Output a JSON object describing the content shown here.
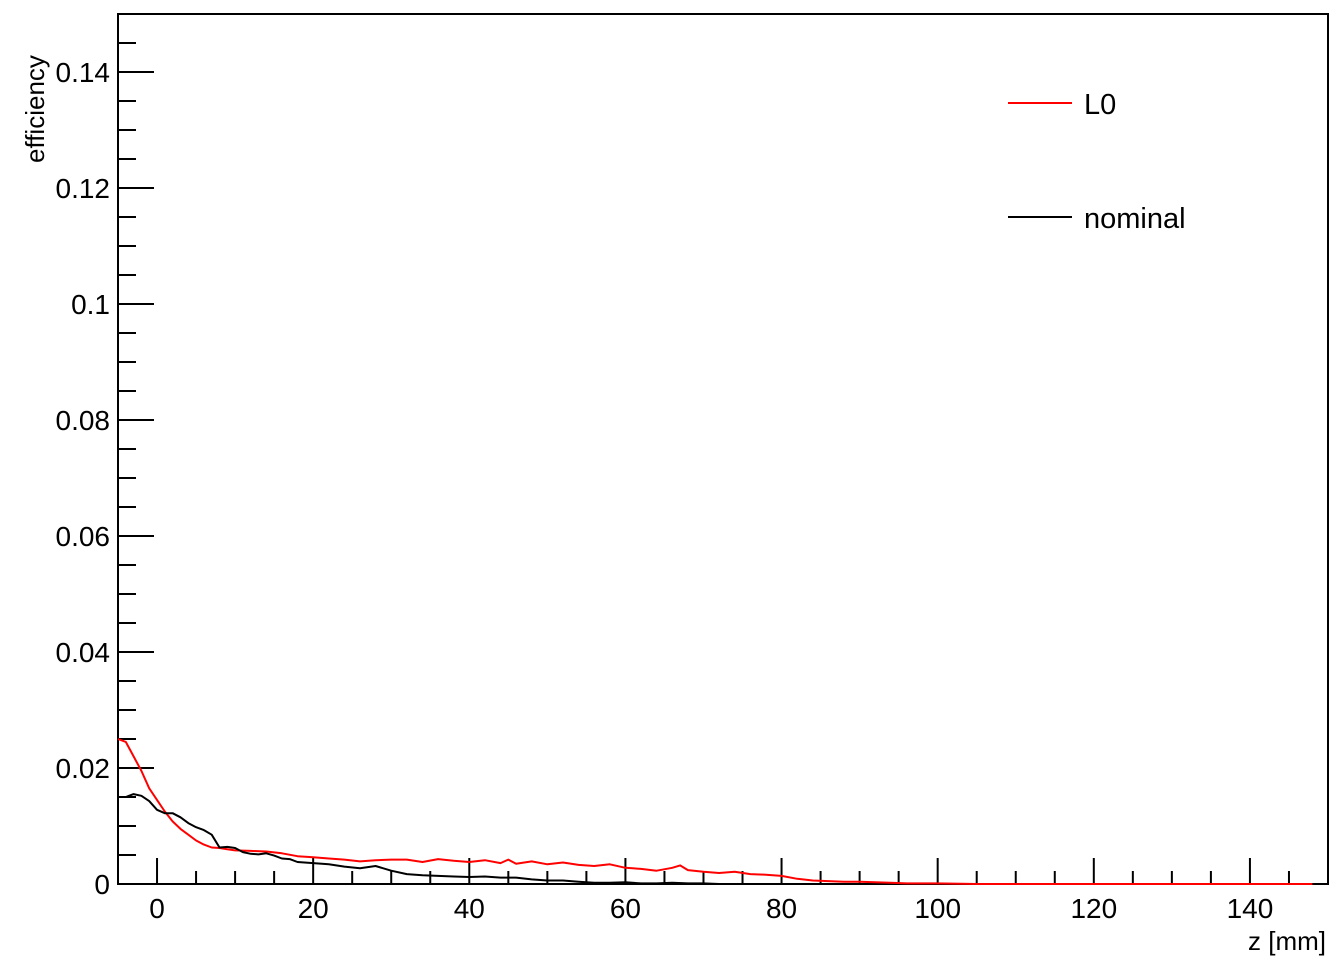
{
  "chart_data": {
    "type": "line",
    "title": "",
    "xlabel": "z [mm]",
    "ylabel": "efficiency",
    "xlim": [
      -5,
      150
    ],
    "ylim": [
      0,
      0.15
    ],
    "x_ticks": [
      0,
      20,
      40,
      60,
      80,
      100,
      120,
      140
    ],
    "x_tick_labels": [
      "0",
      "20",
      "40",
      "60",
      "80",
      "100",
      "120",
      "140"
    ],
    "y_ticks": [
      0,
      0.02,
      0.04,
      0.06,
      0.08,
      0.1,
      0.12,
      0.14
    ],
    "y_tick_labels": [
      "0",
      "0.02",
      "0.04",
      "0.06",
      "0.08",
      "0.1",
      "0.12",
      "0.14"
    ],
    "grid": false,
    "legend_position": "top-right",
    "series": [
      {
        "name": "L0",
        "color": "#ff0000",
        "points": [
          [
            -5,
            0.025
          ],
          [
            -4,
            0.0245
          ],
          [
            -3,
            0.022
          ],
          [
            -2,
            0.0195
          ],
          [
            -1,
            0.0165
          ],
          [
            0,
            0.0145
          ],
          [
            1,
            0.0125
          ],
          [
            2,
            0.0108
          ],
          [
            3,
            0.0095
          ],
          [
            4,
            0.0085
          ],
          [
            5,
            0.0075
          ],
          [
            6,
            0.0068
          ],
          [
            7,
            0.0063
          ],
          [
            8,
            0.0062
          ],
          [
            9,
            0.006
          ],
          [
            10,
            0.0058
          ],
          [
            12,
            0.0057
          ],
          [
            14,
            0.0056
          ],
          [
            16,
            0.0053
          ],
          [
            18,
            0.0048
          ],
          [
            20,
            0.0046
          ],
          [
            22,
            0.0044
          ],
          [
            24,
            0.0042
          ],
          [
            26,
            0.0039
          ],
          [
            28,
            0.0041
          ],
          [
            30,
            0.0042
          ],
          [
            32,
            0.0042
          ],
          [
            34,
            0.0038
          ],
          [
            36,
            0.0043
          ],
          [
            38,
            0.004
          ],
          [
            40,
            0.0038
          ],
          [
            42,
            0.0041
          ],
          [
            44,
            0.0036
          ],
          [
            45,
            0.0042
          ],
          [
            46,
            0.0035
          ],
          [
            48,
            0.0039
          ],
          [
            50,
            0.0034
          ],
          [
            52,
            0.0037
          ],
          [
            54,
            0.0033
          ],
          [
            56,
            0.0031
          ],
          [
            58,
            0.0034
          ],
          [
            60,
            0.0028
          ],
          [
            62,
            0.0026
          ],
          [
            64,
            0.0023
          ],
          [
            66,
            0.0028
          ],
          [
            67,
            0.0032
          ],
          [
            68,
            0.0024
          ],
          [
            70,
            0.0021
          ],
          [
            72,
            0.0019
          ],
          [
            74,
            0.0021
          ],
          [
            76,
            0.0017
          ],
          [
            78,
            0.0016
          ],
          [
            80,
            0.0014
          ],
          [
            82,
            0.0009
          ],
          [
            84,
            0.0006
          ],
          [
            86,
            0.0005
          ],
          [
            88,
            0.0004
          ],
          [
            90,
            0.0004
          ],
          [
            92,
            0.0003
          ],
          [
            94,
            0.0002
          ],
          [
            96,
            0.0001
          ],
          [
            100,
            0.0001
          ],
          [
            105,
            0
          ],
          [
            110,
            0
          ],
          [
            120,
            0
          ],
          [
            130,
            0
          ],
          [
            140,
            0
          ],
          [
            148,
            0
          ]
        ]
      },
      {
        "name": "nominal",
        "color": "#000000",
        "points": [
          [
            -5,
            0.015
          ],
          [
            -4,
            0.015
          ],
          [
            -3,
            0.0155
          ],
          [
            -2,
            0.0152
          ],
          [
            -1,
            0.0143
          ],
          [
            0,
            0.0128
          ],
          [
            1,
            0.0122
          ],
          [
            2,
            0.0122
          ],
          [
            3,
            0.0115
          ],
          [
            4,
            0.0105
          ],
          [
            5,
            0.0098
          ],
          [
            6,
            0.0093
          ],
          [
            7,
            0.0085
          ],
          [
            8,
            0.0063
          ],
          [
            9,
            0.0064
          ],
          [
            10,
            0.0062
          ],
          [
            11,
            0.0055
          ],
          [
            12,
            0.0052
          ],
          [
            13,
            0.0051
          ],
          [
            14,
            0.0053
          ],
          [
            15,
            0.0049
          ],
          [
            16,
            0.0044
          ],
          [
            17,
            0.0043
          ],
          [
            18,
            0.0038
          ],
          [
            20,
            0.0036
          ],
          [
            22,
            0.0034
          ],
          [
            24,
            0.003
          ],
          [
            26,
            0.0027
          ],
          [
            28,
            0.0031
          ],
          [
            30,
            0.0023
          ],
          [
            32,
            0.0017
          ],
          [
            34,
            0.0015
          ],
          [
            36,
            0.0014
          ],
          [
            38,
            0.0013
          ],
          [
            40,
            0.0012
          ],
          [
            42,
            0.0013
          ],
          [
            44,
            0.0011
          ],
          [
            46,
            0.0011
          ],
          [
            48,
            0.0008
          ],
          [
            50,
            0.0006
          ],
          [
            52,
            0.0006
          ],
          [
            54,
            0.0004
          ],
          [
            56,
            0.0002
          ],
          [
            58,
            0.0002
          ],
          [
            60,
            0.0003
          ],
          [
            62,
            0.0001
          ],
          [
            64,
            0.0001
          ],
          [
            66,
            0.0002
          ],
          [
            68,
            0.0001
          ],
          [
            70,
            0.0001
          ],
          [
            72,
            0.0
          ],
          [
            74,
            0.0
          ],
          [
            76,
            0.0
          ]
        ]
      }
    ]
  }
}
